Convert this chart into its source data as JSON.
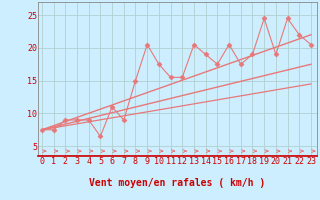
{
  "xlabel": "Vent moyen/en rafales ( km/h )",
  "bg_color": "#cceeff",
  "grid_color": "#b0d0d0",
  "line_color": "#e87878",
  "marker_color": "#e87878",
  "x_ticks": [
    0,
    1,
    2,
    3,
    4,
    5,
    6,
    7,
    8,
    9,
    10,
    11,
    12,
    13,
    14,
    15,
    16,
    17,
    18,
    19,
    20,
    21,
    22,
    23
  ],
  "y_ticks": [
    5,
    10,
    15,
    20,
    25
  ],
  "ylim": [
    3.5,
    27
  ],
  "xlim": [
    -0.3,
    23.5
  ],
  "series_main_x": [
    0,
    1,
    2,
    3,
    4,
    5,
    6,
    7,
    8,
    9,
    10,
    11,
    12,
    13,
    14,
    15,
    16,
    17,
    18,
    19,
    20,
    21,
    22,
    23
  ],
  "series_main_y": [
    7.5,
    7.5,
    9.0,
    9.0,
    9.0,
    6.5,
    11.0,
    9.0,
    15.0,
    20.5,
    17.5,
    15.5,
    15.5,
    20.5,
    19.0,
    17.5,
    20.5,
    17.5,
    19.0,
    24.5,
    19.0,
    24.5,
    22.0,
    20.5
  ],
  "trend_lines": [
    {
      "x0": 0,
      "y0": 7.5,
      "x1": 23,
      "y1": 17.5,
      "lw": 1.0
    },
    {
      "x0": 0,
      "y0": 7.5,
      "x1": 23,
      "y1": 22.0,
      "lw": 1.0
    },
    {
      "x0": 0,
      "y0": 7.5,
      "x1": 23,
      "y1": 14.5,
      "lw": 0.9
    }
  ],
  "arrow_color": "#e87878",
  "xlabel_color": "#cc0000",
  "xlabel_fontsize": 7,
  "tick_color": "#cc0000",
  "tick_fontsize": 6,
  "spine_color": "#cc0000",
  "spine_bottom_color": "#cc0000"
}
